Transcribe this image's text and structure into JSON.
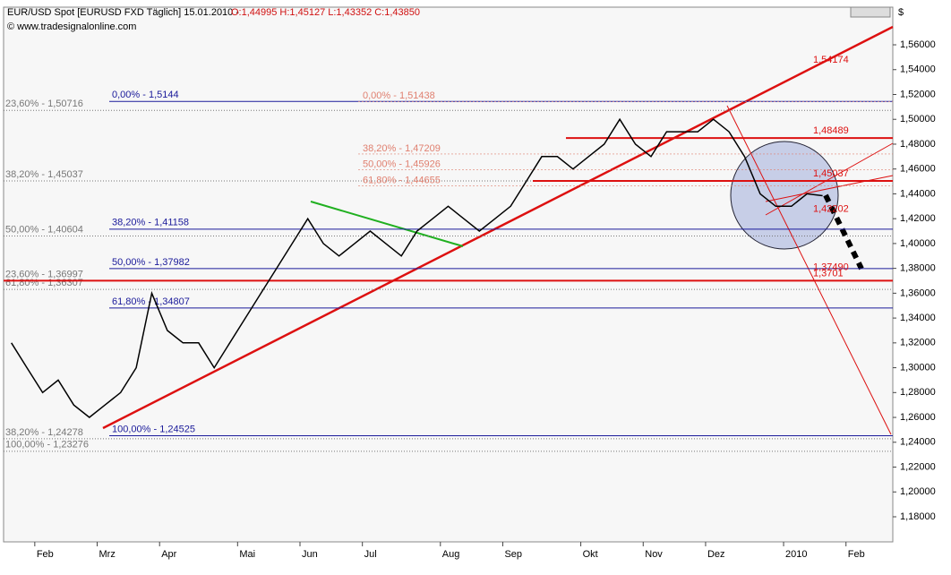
{
  "chart_data": {
    "type": "line",
    "title": "EUR/USD Spot [EURUSD FXD  Täglich] 15.01.2010 -",
    "subtitle": "O:1,44995 H:1,45127 L:1,43352 C:1,43850",
    "source": "© www.tradesignalonline.com",
    "y_axis_label": "$",
    "categories": [
      null,
      null,
      "Feb",
      null,
      null,
      null,
      "Mrz",
      null,
      null,
      null,
      "Apr",
      null,
      null,
      null,
      null,
      "Mai",
      null,
      null,
      null,
      "Jun",
      null,
      null,
      null,
      "Jul",
      null,
      null,
      null,
      null,
      "Aug",
      null,
      null,
      null,
      "Sep",
      null,
      null,
      null,
      null,
      "Okt",
      null,
      null,
      null,
      "Nov",
      null,
      null,
      null,
      "Dez",
      null,
      null,
      null,
      null,
      "2010",
      null,
      null,
      null,
      "Feb",
      null,
      null
    ],
    "series": [
      {
        "name": "EUR/USD",
        "color": "#000000",
        "values": [
          1.32,
          1.3,
          1.28,
          1.29,
          1.27,
          1.26,
          1.27,
          1.28,
          1.3,
          1.36,
          1.33,
          1.32,
          1.32,
          1.3,
          1.32,
          1.34,
          1.36,
          1.38,
          1.4,
          1.42,
          1.4,
          1.39,
          1.4,
          1.41,
          1.4,
          1.39,
          1.41,
          1.42,
          1.43,
          1.42,
          1.41,
          1.42,
          1.43,
          1.45,
          1.47,
          1.47,
          1.46,
          1.47,
          1.48,
          1.5,
          1.48,
          1.47,
          1.49,
          1.49,
          1.49,
          1.5,
          1.49,
          1.47,
          1.44,
          1.43,
          1.43,
          1.44,
          1.4385,
          null,
          null,
          null,
          null
        ]
      }
    ],
    "ylim": [
      1.1598,
      1.5903
    ],
    "yticks": [
      {
        "value": 1.18,
        "label": "1,18000"
      },
      {
        "value": 1.2,
        "label": "1,20000"
      },
      {
        "value": 1.22,
        "label": "1,22000"
      },
      {
        "value": 1.24,
        "label": "1,24000"
      },
      {
        "value": 1.26,
        "label": "1,26000"
      },
      {
        "value": 1.28,
        "label": "1,28000"
      },
      {
        "value": 1.3,
        "label": "1,30000"
      },
      {
        "value": 1.32,
        "label": "1,32000"
      },
      {
        "value": 1.34,
        "label": "1,34000"
      },
      {
        "value": 1.36,
        "label": "1,36000"
      },
      {
        "value": 1.38,
        "label": "1,38000"
      },
      {
        "value": 1.4,
        "label": "1,40000"
      },
      {
        "value": 1.42,
        "label": "1,42000"
      },
      {
        "value": 1.44,
        "label": "1,44000"
      },
      {
        "value": 1.46,
        "label": "1,46000"
      },
      {
        "value": 1.48,
        "label": "1,48000"
      },
      {
        "value": 1.5,
        "label": "1,50000"
      },
      {
        "value": 1.52,
        "label": "1,52000"
      },
      {
        "value": 1.54,
        "label": "1,54000"
      },
      {
        "value": 1.56,
        "label": "1,56000"
      }
    ],
    "fib_levels": [
      {
        "value": 1.5144,
        "label": "0,00% - 1,5144"
      },
      {
        "value": 1.41158,
        "label": "38,20% - 1,41158"
      },
      {
        "value": 1.37982,
        "label": "50,00% - 1,37982"
      },
      {
        "value": 1.34807,
        "label": "61,80% - 1,34807"
      },
      {
        "value": 1.24525,
        "label": "100,00% - 1,24525"
      }
    ],
    "left_levels": [
      {
        "value": 1.50716,
        "label": "23,60% - 1,50716"
      },
      {
        "value": 1.45037,
        "label": "38,20% - 1,45037"
      },
      {
        "value": 1.40604,
        "label": "50,00% - 1,40604"
      },
      {
        "value": 1.36997,
        "label": "23,60% - 1,36997"
      },
      {
        "value": 1.36307,
        "label": "61,80% - 1,36307"
      },
      {
        "value": 1.24278,
        "label": "38,20% - 1,24278"
      },
      {
        "value": 1.23276,
        "label": "100,00% - 1,23276"
      }
    ],
    "projection_levels": [
      {
        "value": 1.51438,
        "label": "0,00% - 1,51438"
      },
      {
        "value": 1.47209,
        "label": "38,20% - 1,47209"
      },
      {
        "value": 1.45926,
        "label": "50,00% - 1,45926"
      },
      {
        "value": 1.44655,
        "label": "61,80% - 1,44655"
      }
    ],
    "red_levels": [
      {
        "value": 1.54174,
        "label": "1,54174"
      },
      {
        "value": 1.48489,
        "label": "1,48489"
      },
      {
        "value": 1.45037,
        "label": "1,45037"
      },
      {
        "value": 1.42202,
        "label": "1,42202"
      },
      {
        "value": 1.3749,
        "label": "1,37490"
      },
      {
        "value": 1.3701,
        "label": "1,3701"
      }
    ],
    "grid": true
  }
}
